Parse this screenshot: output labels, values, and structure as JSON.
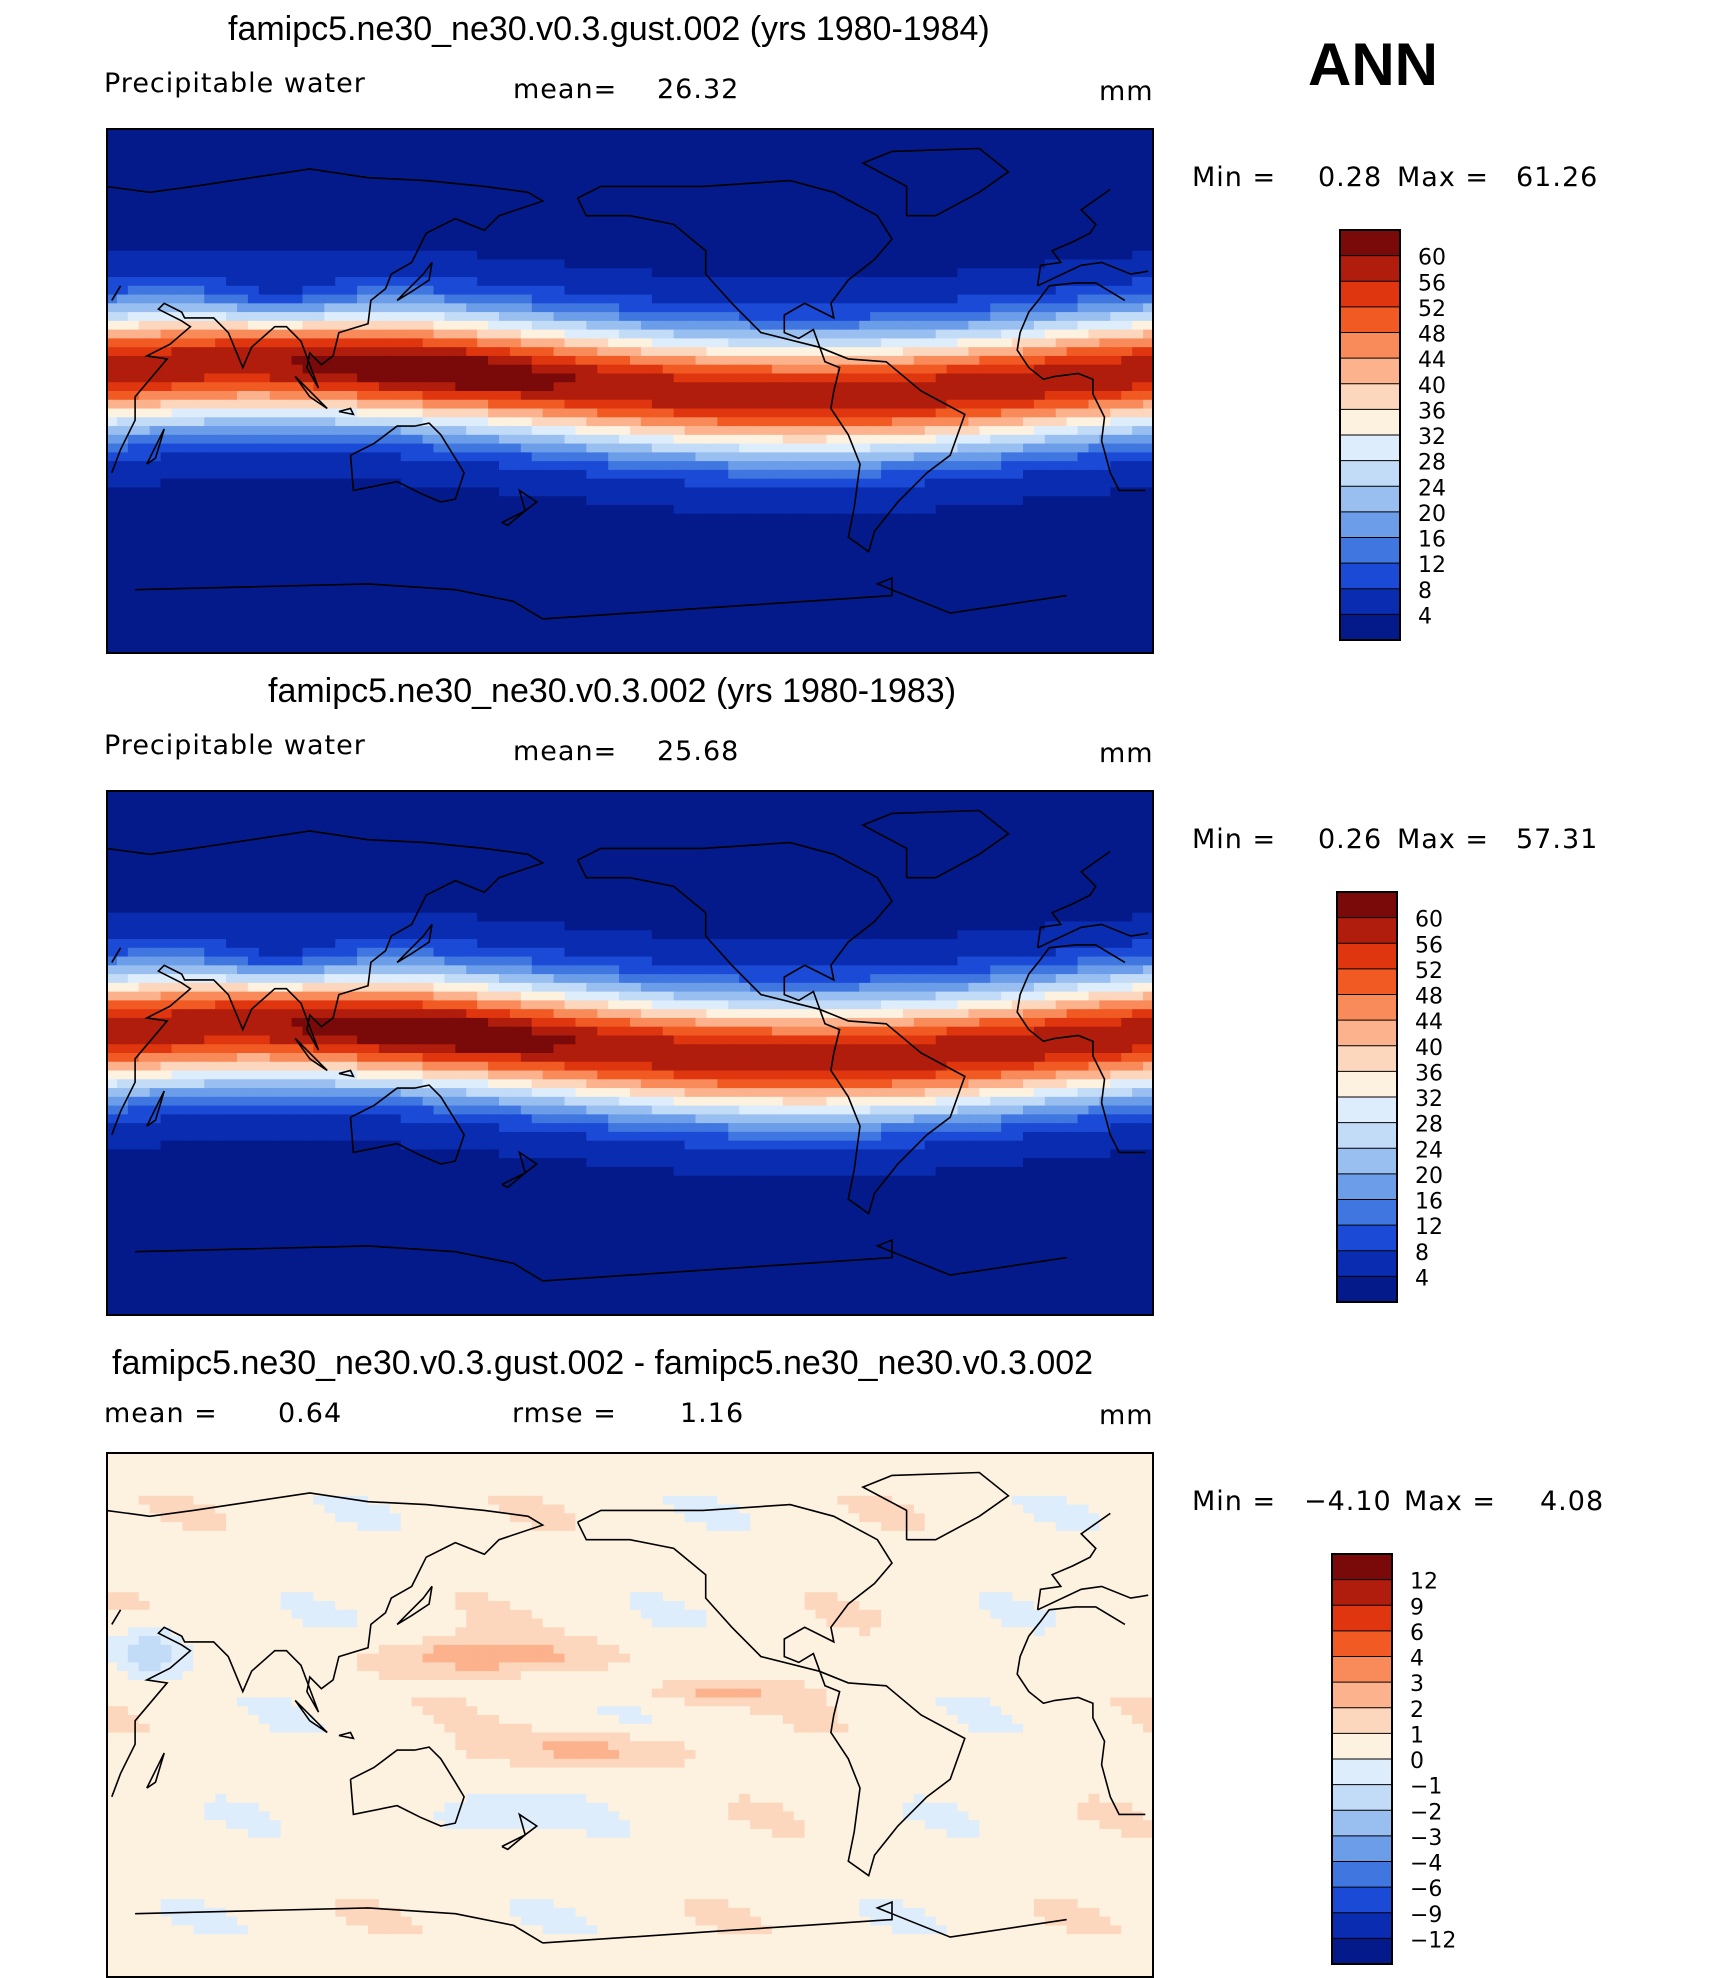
{
  "season": "ANN",
  "chart_data": [
    {
      "type": "heatmap",
      "title": "famipc5.ne30_ne30.v0.3.gust.002 (yrs 1980-1984)",
      "field": "Precipitable water",
      "units": "mm",
      "mean_label": "mean=",
      "mean": "26.32",
      "min_label": "Min =",
      "min": "0.28",
      "max_label": "Max =",
      "max": "61.26",
      "colorbar_levels": [
        "60",
        "56",
        "52",
        "48",
        "44",
        "40",
        "36",
        "32",
        "28",
        "24",
        "20",
        "16",
        "12",
        "8",
        "4"
      ],
      "colors": [
        "#7a0a0a",
        "#b11d0c",
        "#e0360f",
        "#f15a22",
        "#f98b5a",
        "#fbb28d",
        "#fcd7bd",
        "#fdf1e0",
        "#deedfb",
        "#c2dbf7",
        "#98bff0",
        "#6b9de8",
        "#3f76e0",
        "#1b4bd6",
        "#0a2cb0",
        "#041a8a"
      ],
      "pattern": "wet-tropics"
    },
    {
      "type": "heatmap",
      "title": "famipc5.ne30_ne30.v0.3.002 (yrs 1980-1983)",
      "field": "Precipitable water",
      "units": "mm",
      "mean_label": "mean=",
      "mean": "25.68",
      "min_label": "Min =",
      "min": "0.26",
      "max_label": "Max =",
      "max": "57.31",
      "colorbar_levels": [
        "60",
        "56",
        "52",
        "48",
        "44",
        "40",
        "36",
        "32",
        "28",
        "24",
        "20",
        "16",
        "12",
        "8",
        "4"
      ],
      "colors": [
        "#7a0a0a",
        "#b11d0c",
        "#e0360f",
        "#f15a22",
        "#f98b5a",
        "#fbb28d",
        "#fcd7bd",
        "#fdf1e0",
        "#deedfb",
        "#c2dbf7",
        "#98bff0",
        "#6b9de8",
        "#3f76e0",
        "#1b4bd6",
        "#0a2cb0",
        "#041a8a"
      ],
      "pattern": "wet-tropics"
    },
    {
      "type": "heatmap",
      "title": "famipc5.ne30_ne30.v0.3.gust.002 - famipc5.ne30_ne30.v0.3.002",
      "field": "",
      "units": "mm",
      "mean_label": "mean =",
      "mean": "0.64",
      "rmse_label": "rmse =",
      "rmse": "1.16",
      "min_label": "Min =",
      "min": "−4.10",
      "max_label": "Max =",
      "max": "4.08",
      "colorbar_levels": [
        "12",
        "9",
        "6",
        "4",
        "3",
        "2",
        "1",
        "0",
        "−1",
        "−2",
        "−3",
        "−4",
        "−6",
        "−9",
        "−12"
      ],
      "colors": [
        "#7a0a0a",
        "#b11d0c",
        "#e0360f",
        "#f15a22",
        "#f98b5a",
        "#fbb28d",
        "#fcd7bd",
        "#fdf1e0",
        "#deedfb",
        "#c2dbf7",
        "#98bff0",
        "#6b9de8",
        "#3f76e0",
        "#1b4bd6",
        "#0a2cb0",
        "#041a8a"
      ],
      "pattern": "difference"
    }
  ]
}
